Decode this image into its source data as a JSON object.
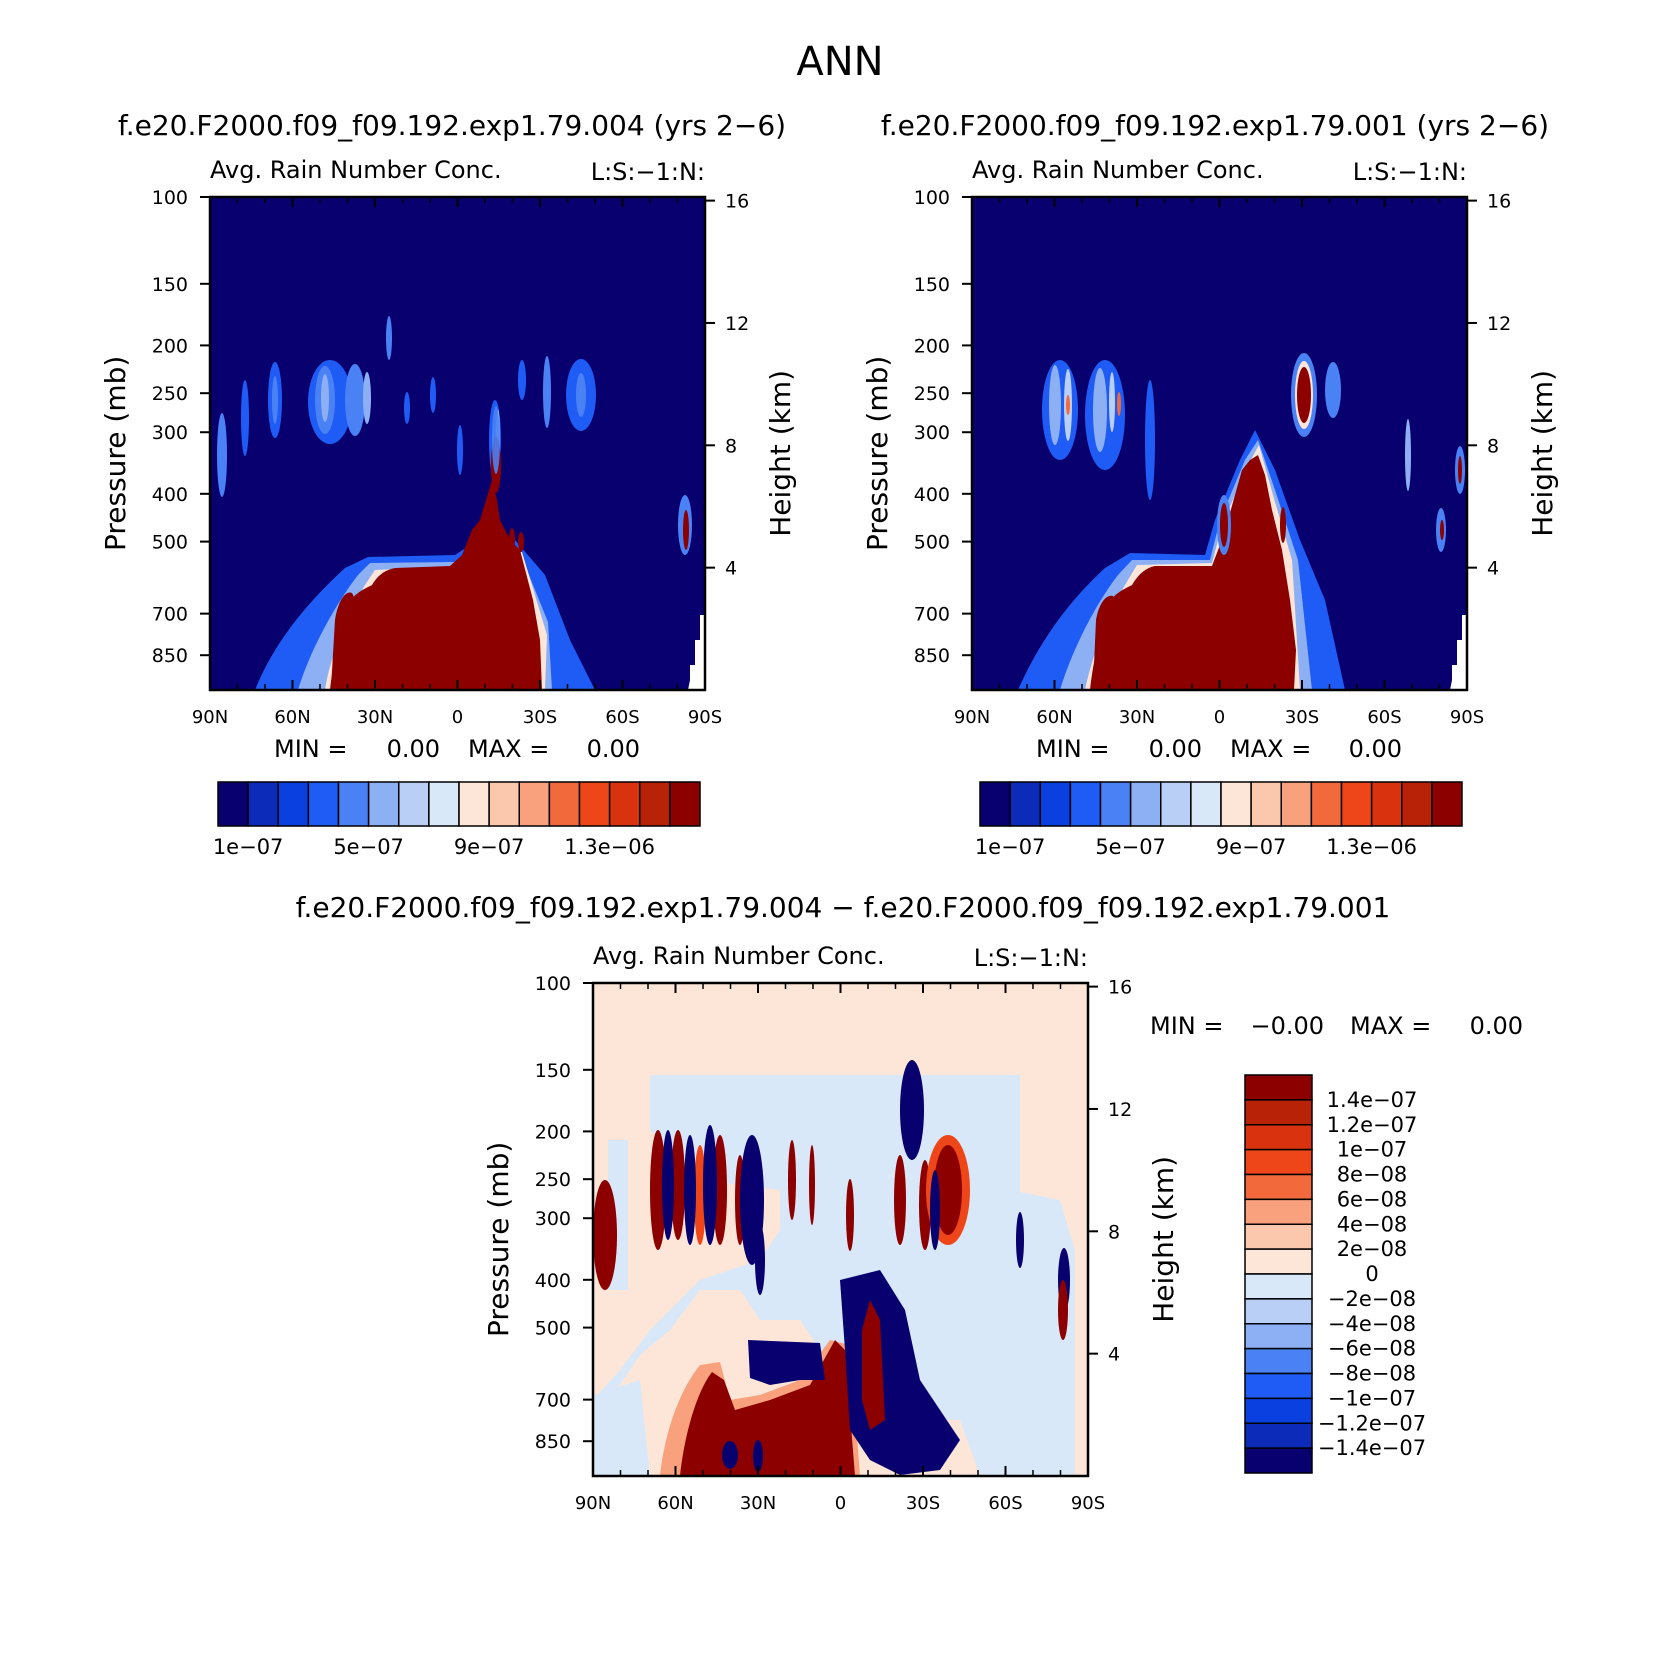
{
  "page_title": "ANN",
  "chart_data": [
    {
      "type": "heatmap",
      "title": "f.e20.F2000.f09_f09.192.exp1.79.004 (yrs 2−6)",
      "subtitle": "Avg. Rain Number Conc.",
      "corner_label": "L:S:−1:N:",
      "xlabel": "",
      "ylabel": "Pressure (mb)",
      "y2label": "Height (km)",
      "x_ticks": [
        "90N",
        "60N",
        "30N",
        "0",
        "30S",
        "60S",
        "90S"
      ],
      "y_ticks": [
        100,
        150,
        200,
        250,
        300,
        400,
        500,
        700,
        850
      ],
      "y2_ticks": [
        16,
        12,
        8,
        4
      ],
      "y_scale": "log",
      "min_max_text": {
        "min_label": "MIN =",
        "min_value": "0.00",
        "max_label": "MAX =",
        "max_value": "0.00"
      },
      "colorbar": {
        "orientation": "horizontal",
        "colors": [
          "#08006e",
          "#0b2bb8",
          "#0a3fe0",
          "#1f5cf5",
          "#4a82f5",
          "#8db0f5",
          "#b9cff5",
          "#d8e8f8",
          "#fde6d8",
          "#fbc8ae",
          "#f8a17c",
          "#f26a3c",
          "#ee4618",
          "#d8330e",
          "#b82308",
          "#8c0000"
        ],
        "labels": [
          "1e−07",
          "5e−07",
          "9e−07",
          "1.3e−06"
        ]
      }
    },
    {
      "type": "heatmap",
      "title": "f.e20.F2000.f09_f09.192.exp1.79.001 (yrs 2−6)",
      "subtitle": "Avg. Rain Number Conc.",
      "corner_label": "L:S:−1:N:",
      "xlabel": "",
      "ylabel": "Pressure (mb)",
      "y2label": "Height (km)",
      "x_ticks": [
        "90N",
        "60N",
        "30N",
        "0",
        "30S",
        "60S",
        "90S"
      ],
      "y_ticks": [
        100,
        150,
        200,
        250,
        300,
        400,
        500,
        700,
        850
      ],
      "y2_ticks": [
        16,
        12,
        8,
        4
      ],
      "y_scale": "log",
      "min_max_text": {
        "min_label": "MIN =",
        "min_value": "0.00",
        "max_label": "MAX =",
        "max_value": "0.00"
      },
      "colorbar": {
        "orientation": "horizontal",
        "colors": [
          "#08006e",
          "#0b2bb8",
          "#0a3fe0",
          "#1f5cf5",
          "#4a82f5",
          "#8db0f5",
          "#b9cff5",
          "#d8e8f8",
          "#fde6d8",
          "#fbc8ae",
          "#f8a17c",
          "#f26a3c",
          "#ee4618",
          "#d8330e",
          "#b82308",
          "#8c0000"
        ],
        "labels": [
          "1e−07",
          "5e−07",
          "9e−07",
          "1.3e−06"
        ]
      }
    },
    {
      "type": "heatmap",
      "title": "f.e20.F2000.f09_f09.192.exp1.79.004 − f.e20.F2000.f09_f09.192.exp1.79.001",
      "subtitle": "Avg. Rain Number Conc.",
      "corner_label": "L:S:−1:N:",
      "xlabel": "",
      "ylabel": "Pressure (mb)",
      "y2label": "Height (km)",
      "x_ticks": [
        "90N",
        "60N",
        "30N",
        "0",
        "30S",
        "60S",
        "90S"
      ],
      "y_ticks": [
        100,
        150,
        200,
        250,
        300,
        400,
        500,
        700,
        850
      ],
      "y2_ticks": [
        16,
        12,
        8,
        4
      ],
      "y_scale": "log",
      "min_max_text": {
        "min_label": "MIN =",
        "min_value": "−0.00",
        "max_label": "MAX =",
        "max_value": "0.00"
      },
      "colorbar": {
        "orientation": "vertical",
        "colors": [
          "#8c0000",
          "#b82308",
          "#d8330e",
          "#ee4618",
          "#f26a3c",
          "#f8a17c",
          "#fbc8ae",
          "#fde6d8",
          "#d8e8f8",
          "#b9cff5",
          "#8db0f5",
          "#4a82f5",
          "#1f5cf5",
          "#0a3fe0",
          "#0b2bb8",
          "#08006e"
        ],
        "labels": [
          "1.4e−07",
          "1.2e−07",
          "1e−07",
          "8e−08",
          "6e−08",
          "4e−08",
          "2e−08",
          "0",
          "−2e−08",
          "−4e−08",
          "−6e−08",
          "−8e−08",
          "−1e−07",
          "−1.2e−07",
          "−1.4e−07"
        ]
      }
    }
  ]
}
